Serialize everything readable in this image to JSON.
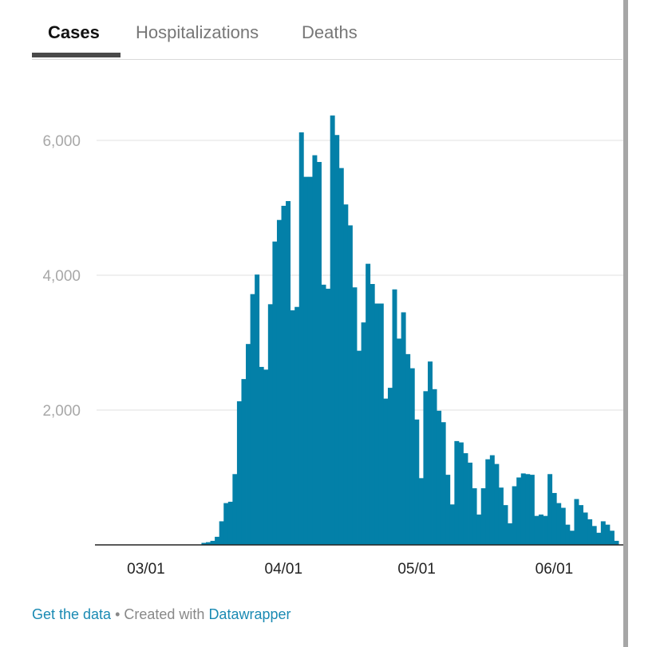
{
  "tabs": [
    {
      "label": "Cases",
      "active": true
    },
    {
      "label": "Hospitalizations",
      "active": false
    },
    {
      "label": "Deaths",
      "active": false
    }
  ],
  "footer": {
    "get_data": "Get the data",
    "separator": " • Created with ",
    "datawrapper": "Datawrapper"
  },
  "colors": {
    "bar": "#0380a8",
    "gridline": "#e0e0e0",
    "axis": "#222222",
    "tick_y": "#a8a8a8",
    "tick_x": "#222222",
    "link": "#1a8ab3"
  },
  "chart_data": {
    "type": "bar",
    "title": "",
    "xlabel": "",
    "ylabel": "",
    "ylim": [
      0,
      6600
    ],
    "y_ticks": [
      2000,
      4000,
      6000
    ],
    "y_tick_labels": [
      "2,000",
      "4,000",
      "6,000"
    ],
    "x_ticks": [
      "03/01",
      "04/01",
      "05/01",
      "06/01"
    ],
    "grid": true,
    "start_date": "2020-02-19",
    "values": [
      0,
      0,
      0,
      0,
      0,
      0,
      0,
      0,
      0,
      0,
      0,
      0,
      0,
      0,
      0,
      0,
      0,
      0,
      0,
      0,
      0,
      0,
      0,
      0,
      30,
      40,
      60,
      120,
      350,
      620,
      640,
      1050,
      2130,
      2460,
      2980,
      3720,
      4010,
      2640,
      2600,
      3570,
      4500,
      4820,
      5030,
      5100,
      3480,
      3530,
      6120,
      5460,
      5460,
      5780,
      5680,
      3860,
      3800,
      6370,
      6080,
      5590,
      5050,
      4740,
      3820,
      2880,
      3300,
      4170,
      3870,
      3580,
      3580,
      2170,
      2330,
      3790,
      3060,
      3450,
      2830,
      2620,
      1860,
      990,
      2280,
      2720,
      2310,
      1990,
      1820,
      1040,
      600,
      1540,
      1520,
      1360,
      1220,
      840,
      450,
      840,
      1270,
      1330,
      1200,
      850,
      590,
      320,
      870,
      1000,
      1060,
      1050,
      1040,
      430,
      450,
      430,
      1050,
      770,
      620,
      550,
      300,
      210,
      680,
      590,
      480,
      380,
      280,
      180,
      350,
      300,
      210,
      60
    ]
  }
}
